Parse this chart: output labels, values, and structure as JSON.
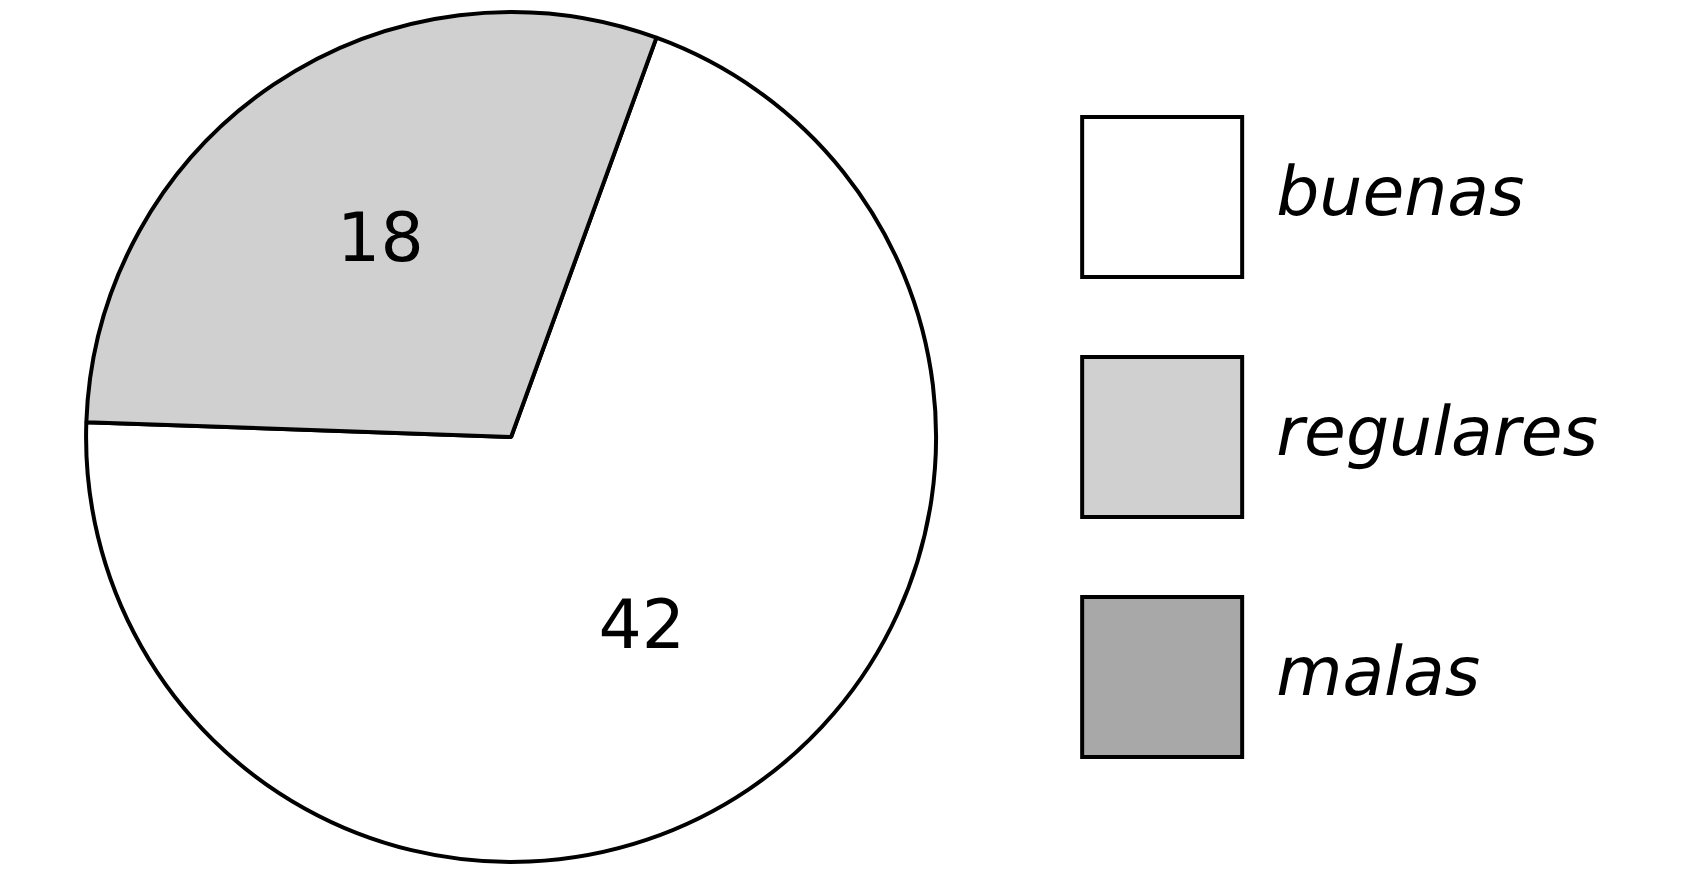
{
  "chart_data": {
    "type": "pie",
    "categories": [
      "buenas",
      "regulares",
      "malas"
    ],
    "values": [
      42,
      18,
      0
    ],
    "value_labels": [
      "42",
      "18",
      null
    ],
    "colors": [
      "#ffffff",
      "#d0d0d0",
      "#a8a8a8"
    ],
    "legend": "right"
  }
}
